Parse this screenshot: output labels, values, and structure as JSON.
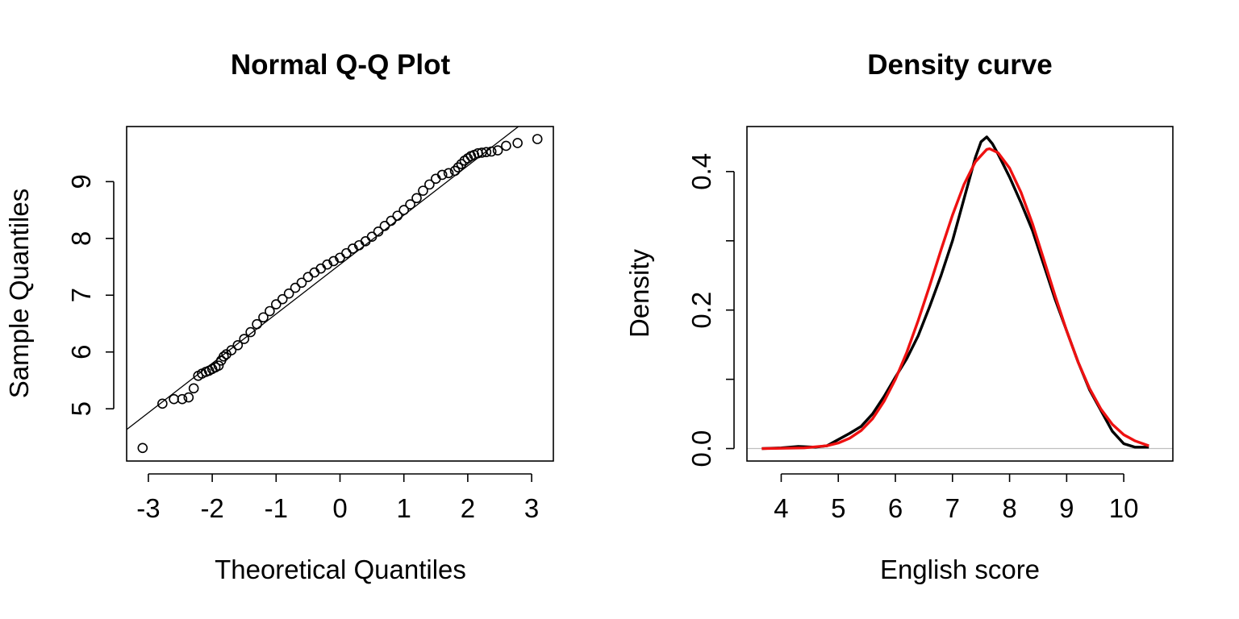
{
  "chart_data": [
    {
      "type": "scatter",
      "title": "Normal Q-Q Plot",
      "xlabel": "Theoretical Quantiles",
      "ylabel": "Sample Quantiles",
      "xlim": [
        -3.34,
        3.34
      ],
      "ylim": [
        4.08,
        9.97
      ],
      "xticks": [
        -3,
        -2,
        -1,
        0,
        1,
        2,
        3
      ],
      "xtick_labels": [
        "-3",
        "-2",
        "-1",
        "0",
        "1",
        "2",
        "3"
      ],
      "yticks": [
        5,
        6,
        7,
        8,
        9
      ],
      "ytick_labels": [
        "5",
        "6",
        "7",
        "8",
        "9"
      ],
      "reference_line": {
        "intercept": 7.54,
        "slope": 0.87
      },
      "point_color": "#000000",
      "series": [
        {
          "x": [
            -3.09,
            -2.78,
            -2.6,
            -2.47,
            -2.37,
            -2.29,
            -2.22,
            -2.16,
            -2.1,
            -2.05,
            -2.0,
            -1.95,
            -1.9,
            -1.86,
            -1.82,
            -1.78,
            -1.7,
            -1.6,
            -1.5,
            -1.4,
            -1.3,
            -1.2,
            -1.1,
            -1.0,
            -0.9,
            -0.8,
            -0.7,
            -0.6,
            -0.5,
            -0.4,
            -0.3,
            -0.2,
            -0.1,
            0.0,
            0.1,
            0.2,
            0.3,
            0.4,
            0.5,
            0.6,
            0.7,
            0.8,
            0.9,
            1.0,
            1.1,
            1.2,
            1.3,
            1.4,
            1.5,
            1.6,
            1.7,
            1.8,
            1.85,
            1.9,
            1.95,
            2.0,
            2.05,
            2.1,
            2.16,
            2.22,
            2.29,
            2.37,
            2.47,
            2.6,
            2.78,
            3.09
          ],
          "y": [
            4.31,
            5.09,
            5.17,
            5.17,
            5.2,
            5.36,
            5.58,
            5.62,
            5.65,
            5.67,
            5.7,
            5.73,
            5.76,
            5.85,
            5.92,
            5.96,
            6.03,
            6.12,
            6.23,
            6.35,
            6.49,
            6.61,
            6.72,
            6.84,
            6.93,
            7.03,
            7.13,
            7.22,
            7.32,
            7.4,
            7.47,
            7.54,
            7.6,
            7.66,
            7.74,
            7.82,
            7.88,
            7.95,
            8.03,
            8.12,
            8.22,
            8.31,
            8.4,
            8.5,
            8.6,
            8.71,
            8.84,
            8.95,
            9.05,
            9.12,
            9.15,
            9.19,
            9.25,
            9.31,
            9.37,
            9.41,
            9.45,
            9.47,
            9.5,
            9.51,
            9.52,
            9.53,
            9.55,
            9.63,
            9.68,
            9.75
          ]
        }
      ]
    },
    {
      "type": "line",
      "title": "Density curve",
      "xlabel": "English score",
      "ylabel": "Density",
      "xlim": [
        3.4,
        10.86
      ],
      "ylim": [
        -0.018,
        0.465
      ],
      "xticks": [
        4,
        5,
        6,
        7,
        8,
        9,
        10
      ],
      "xtick_labels": [
        "4",
        "5",
        "6",
        "7",
        "8",
        "9",
        "10"
      ],
      "yticks": [
        0.0,
        0.1,
        0.2,
        0.3,
        0.4
      ],
      "ytick_labels": [
        "0.0",
        "0.2",
        "0.4"
      ],
      "labeled_yticks": [
        0.0,
        0.2,
        0.4
      ],
      "zero_line": true,
      "series": [
        {
          "color": "#000000",
          "x": [
            3.66,
            4.0,
            4.3,
            4.6,
            4.8,
            5.0,
            5.2,
            5.4,
            5.6,
            5.8,
            6.0,
            6.2,
            6.4,
            6.6,
            6.8,
            7.0,
            7.2,
            7.4,
            7.5,
            7.6,
            7.7,
            7.8,
            8.0,
            8.2,
            8.4,
            8.6,
            8.8,
            9.0,
            9.2,
            9.4,
            9.6,
            9.8,
            10.0,
            10.2,
            10.44
          ],
          "y": [
            0.0,
            0.001,
            0.003,
            0.002,
            0.004,
            0.013,
            0.022,
            0.032,
            0.05,
            0.075,
            0.103,
            0.13,
            0.163,
            0.205,
            0.25,
            0.3,
            0.36,
            0.42,
            0.443,
            0.45,
            0.44,
            0.425,
            0.392,
            0.355,
            0.315,
            0.265,
            0.215,
            0.17,
            0.125,
            0.085,
            0.055,
            0.025,
            0.007,
            0.002,
            0.002
          ]
        },
        {
          "color": "#ee1111",
          "x": [
            3.66,
            4.0,
            4.4,
            4.8,
            5.0,
            5.2,
            5.4,
            5.6,
            5.8,
            6.0,
            6.2,
            6.4,
            6.6,
            6.8,
            7.0,
            7.2,
            7.4,
            7.6,
            7.65,
            7.8,
            8.0,
            8.2,
            8.4,
            8.6,
            8.8,
            9.0,
            9.2,
            9.4,
            9.6,
            9.8,
            10.0,
            10.2,
            10.44
          ],
          "y": [
            0.0,
            0.0004,
            0.001,
            0.004,
            0.008,
            0.015,
            0.026,
            0.043,
            0.068,
            0.1,
            0.139,
            0.185,
            0.235,
            0.287,
            0.337,
            0.381,
            0.414,
            0.432,
            0.433,
            0.427,
            0.405,
            0.37,
            0.325,
            0.273,
            0.22,
            0.17,
            0.125,
            0.087,
            0.057,
            0.035,
            0.02,
            0.011,
            0.004
          ]
        }
      ]
    }
  ]
}
